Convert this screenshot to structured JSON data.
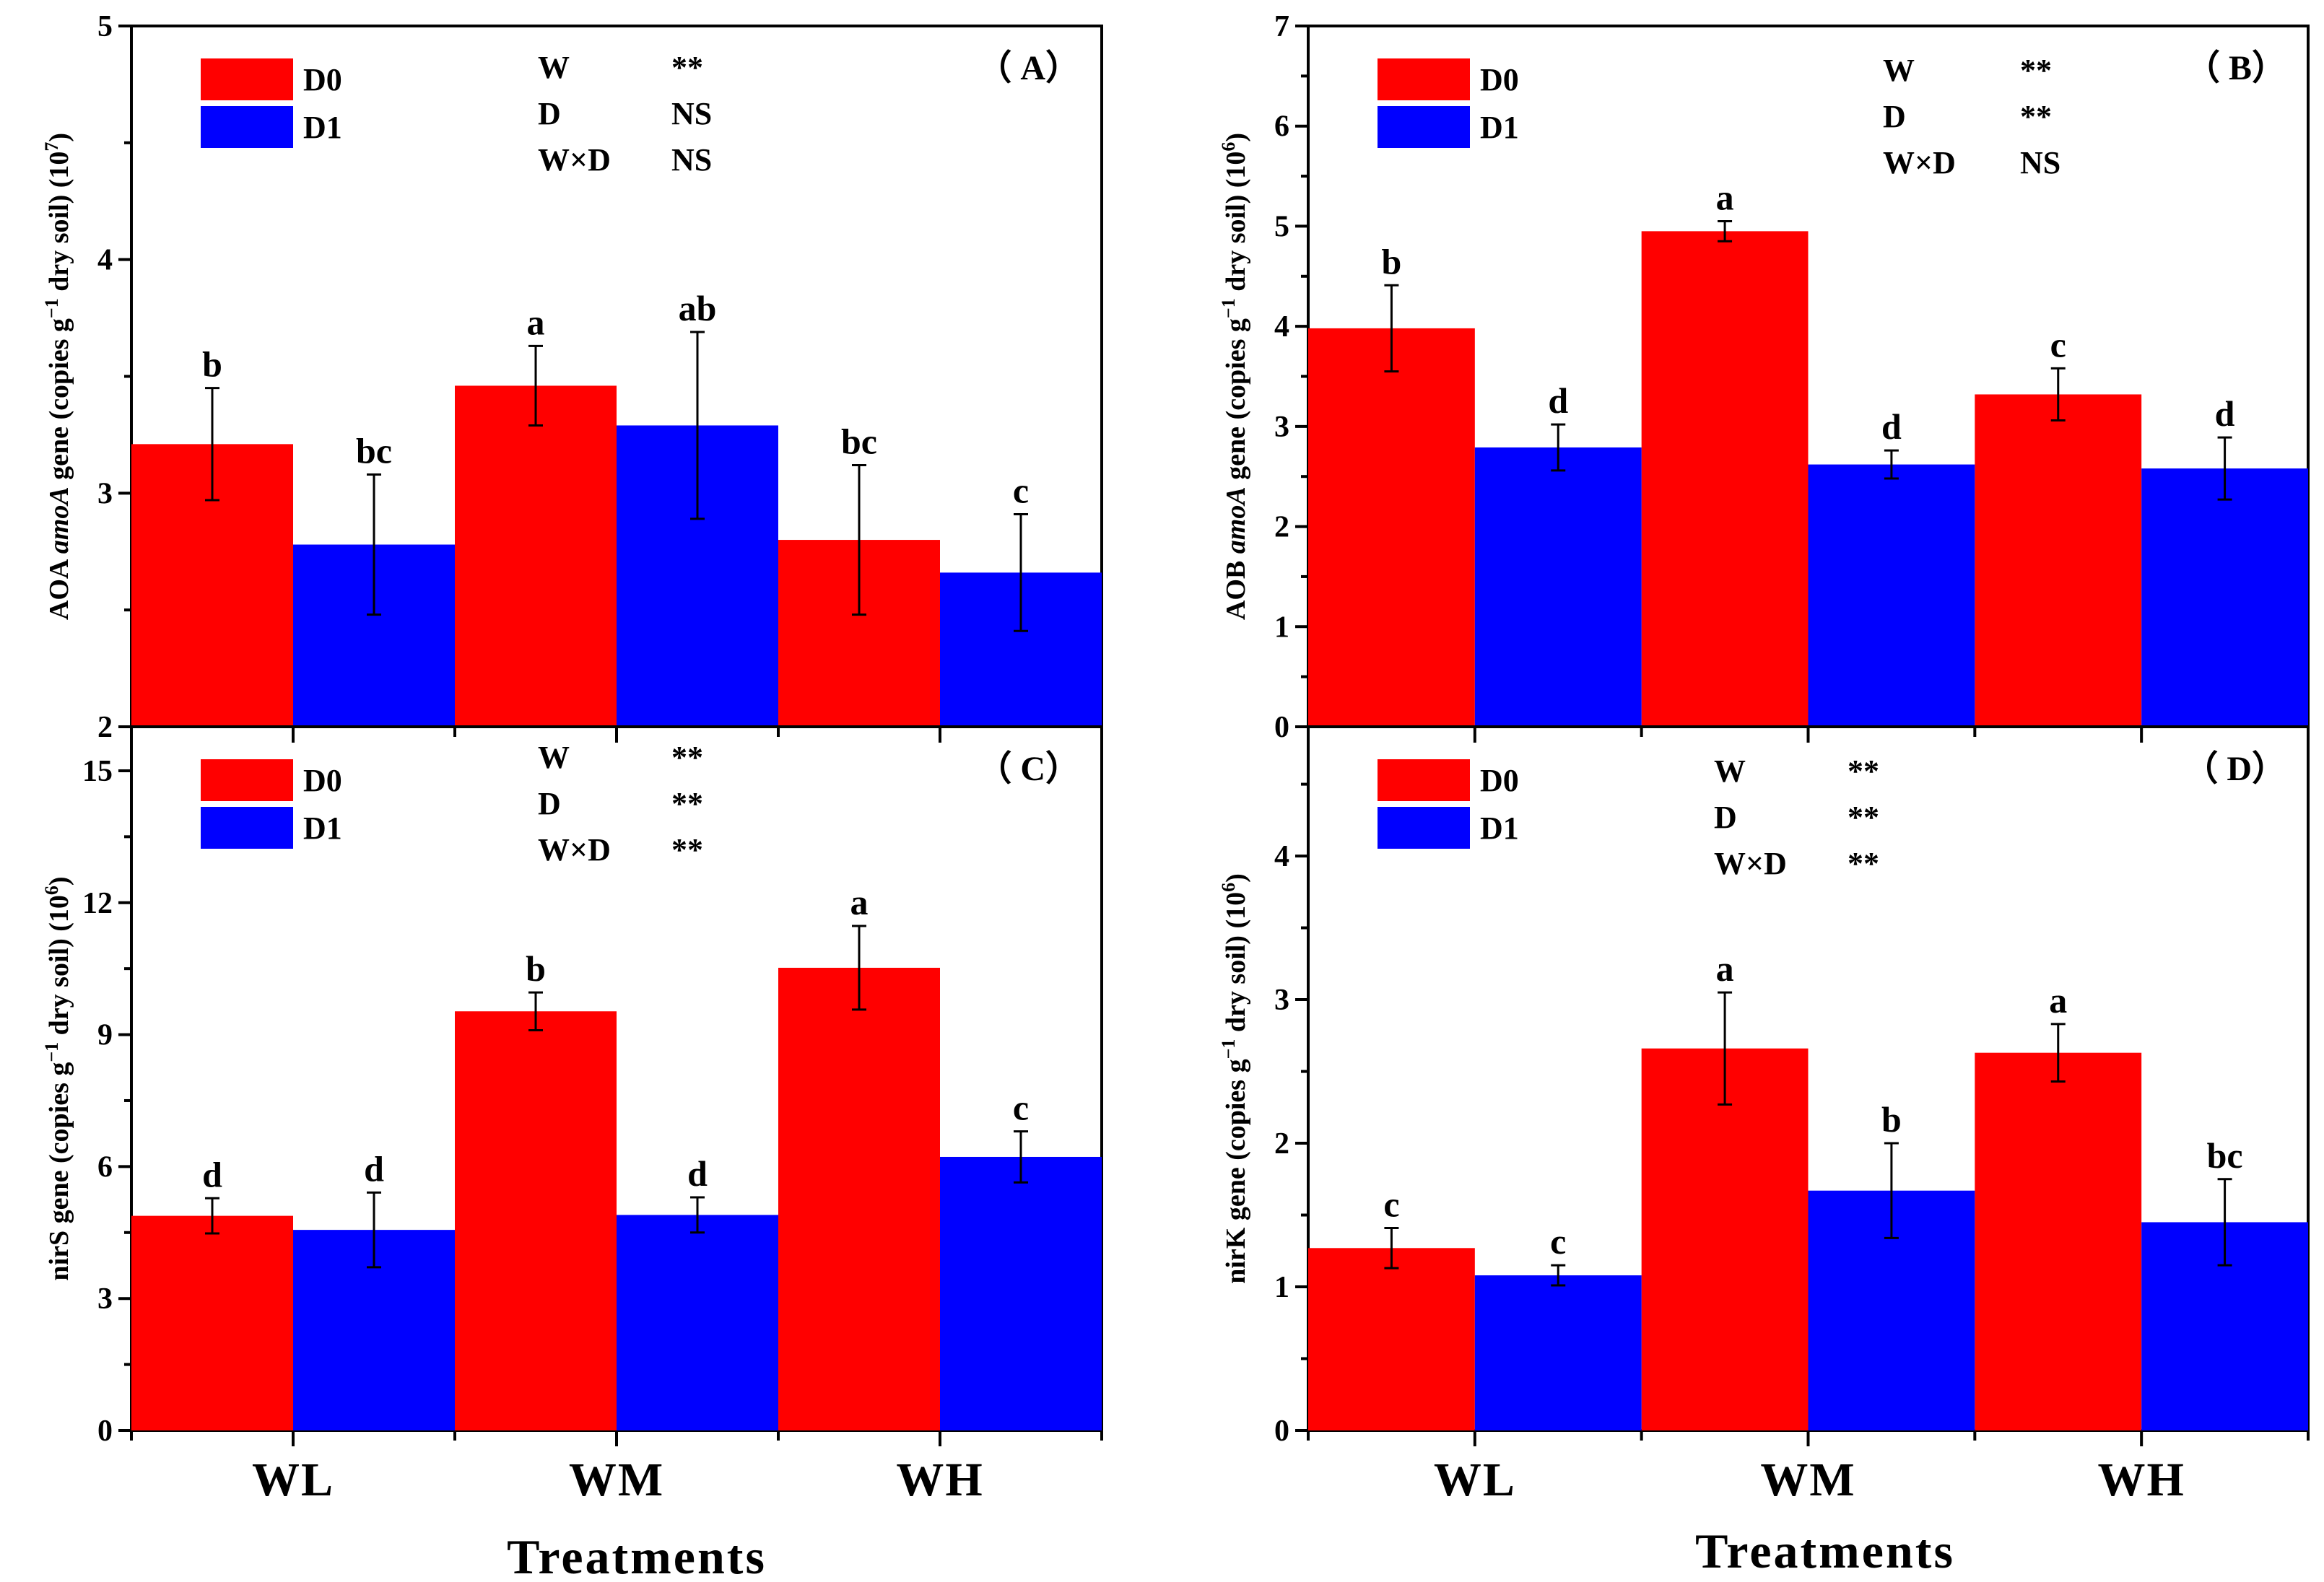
{
  "colors": {
    "D0": "#ff0000",
    "D1": "#0000ff"
  },
  "figure": {
    "xlabel": "Treatments"
  },
  "chart_data": [
    {
      "id": "A",
      "type": "bar",
      "panel_label": "（ A）",
      "categories": [
        "WL",
        "WM",
        "WH"
      ],
      "ylabel_pre": "AOA ",
      "ylabel_italic": "amoA",
      "ylabel_mid": " gene (copies g",
      "ylabel_sup": "−1",
      "ylabel_post": " dry soil) (10",
      "ylabel_exp": "7",
      "ylabel_end": ")",
      "ylim": [
        2,
        5
      ],
      "yticks": [
        2,
        3,
        4,
        5
      ],
      "ytick_labels": [
        "2",
        "3",
        "4",
        "5"
      ],
      "minor_step": 0.5,
      "series": [
        {
          "name": "D0",
          "values": [
            3.21,
            3.46,
            2.8
          ],
          "errors": [
            0.24,
            0.17,
            0.32
          ],
          "letters": [
            "b",
            "a",
            "bc"
          ]
        },
        {
          "name": "D1",
          "values": [
            2.78,
            3.29,
            2.66
          ],
          "errors": [
            0.3,
            0.4,
            0.25
          ],
          "letters": [
            "bc",
            "ab",
            "c"
          ]
        }
      ],
      "stats": [
        {
          "factor": "W",
          "sig": "**"
        },
        {
          "factor": "D",
          "sig": "NS"
        },
        {
          "factor": "W×D",
          "sig": "NS"
        }
      ]
    },
    {
      "id": "B",
      "type": "bar",
      "panel_label": "（ B）",
      "categories": [
        "WL",
        "WM",
        "WH"
      ],
      "ylabel_pre": "AOB ",
      "ylabel_italic": "amoA",
      "ylabel_mid": " gene (copies g",
      "ylabel_sup": "−1",
      "ylabel_post": " dry soil) (10",
      "ylabel_exp": "6",
      "ylabel_end": ")",
      "ylim": [
        0,
        7
      ],
      "yticks": [
        0,
        1,
        2,
        3,
        4,
        5,
        6,
        7
      ],
      "ytick_labels": [
        "0",
        "1",
        "2",
        "3",
        "4",
        "5",
        "6",
        "7"
      ],
      "minor_step": 0.5,
      "series": [
        {
          "name": "D0",
          "values": [
            3.98,
            4.95,
            3.32
          ],
          "errors": [
            0.43,
            0.1,
            0.26
          ],
          "letters": [
            "b",
            "a",
            "c"
          ]
        },
        {
          "name": "D1",
          "values": [
            2.79,
            2.62,
            2.58
          ],
          "errors": [
            0.23,
            0.14,
            0.31
          ],
          "letters": [
            "d",
            "d",
            "d"
          ]
        }
      ],
      "stats": [
        {
          "factor": "W",
          "sig": "**"
        },
        {
          "factor": "D",
          "sig": "**"
        },
        {
          "factor": "W×D",
          "sig": "NS"
        }
      ]
    },
    {
      "id": "C",
      "type": "bar",
      "panel_label": "（ C）",
      "categories": [
        "WL",
        "WM",
        "WH"
      ],
      "ylabel_pre": "nirS",
      "ylabel_italic": "",
      "ylabel_mid": " gene (copies g",
      "ylabel_sup": "−1",
      "ylabel_post": " dry soil) (10",
      "ylabel_exp": "6",
      "ylabel_end": ")",
      "ylim": [
        0,
        16
      ],
      "yticks": [
        0,
        3,
        6,
        9,
        12,
        15
      ],
      "ytick_labels": [
        "0",
        "3",
        "6",
        "9",
        "12",
        "15"
      ],
      "minor_step": 1.5,
      "series": [
        {
          "name": "D0",
          "values": [
            4.88,
            9.53,
            10.52
          ],
          "errors": [
            0.4,
            0.43,
            0.95
          ],
          "letters": [
            "d",
            "b",
            "a"
          ]
        },
        {
          "name": "D1",
          "values": [
            4.56,
            4.9,
            6.22
          ],
          "errors": [
            0.85,
            0.4,
            0.58
          ],
          "letters": [
            "d",
            "d",
            "c"
          ]
        }
      ],
      "stats": [
        {
          "factor": "W",
          "sig": "**"
        },
        {
          "factor": "D",
          "sig": "**"
        },
        {
          "factor": "W×D",
          "sig": "**"
        }
      ]
    },
    {
      "id": "D",
      "type": "bar",
      "panel_label": "（ D）",
      "categories": [
        "WL",
        "WM",
        "WH"
      ],
      "ylabel_pre": "nirK",
      "ylabel_italic": "",
      "ylabel_mid": " gene (copies g",
      "ylabel_sup": "−1",
      "ylabel_post": " dry soil) (10",
      "ylabel_exp": "6",
      "ylabel_end": ")",
      "ylim": [
        0,
        4.9
      ],
      "yticks": [
        0,
        1,
        2,
        3,
        4
      ],
      "ytick_labels": [
        "0",
        "1",
        "2",
        "3",
        "4"
      ],
      "minor_step": 0.5,
      "series": [
        {
          "name": "D0",
          "values": [
            1.27,
            2.66,
            2.63
          ],
          "errors": [
            0.14,
            0.39,
            0.2
          ],
          "letters": [
            "c",
            "a",
            "a"
          ]
        },
        {
          "name": "D1",
          "values": [
            1.08,
            1.67,
            1.45
          ],
          "errors": [
            0.07,
            0.33,
            0.3
          ],
          "letters": [
            "c",
            "b",
            "bc"
          ]
        }
      ],
      "stats": [
        {
          "factor": "W",
          "sig": "**"
        },
        {
          "factor": "D",
          "sig": "**"
        },
        {
          "factor": "W×D",
          "sig": "**"
        }
      ]
    }
  ]
}
